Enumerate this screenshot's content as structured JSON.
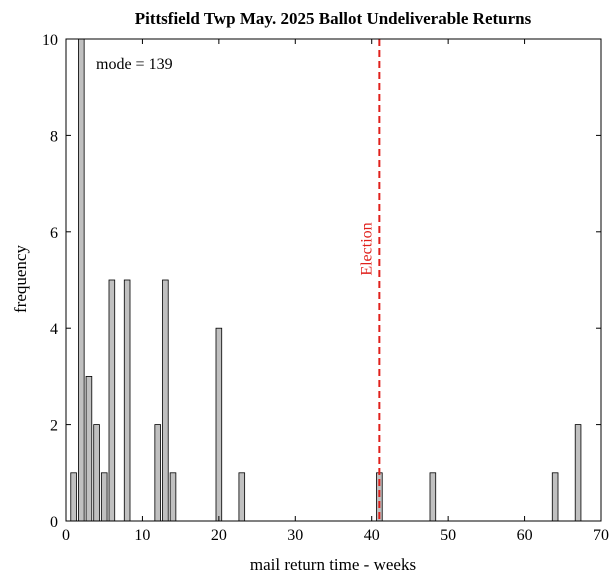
{
  "chart_data": {
    "type": "bar",
    "title": "Pittsfield Twp May. 2025 Ballot Undeliverable Returns",
    "xlabel": "mail return time - weeks",
    "ylabel": "frequency",
    "xlim": [
      0,
      70
    ],
    "ylim": [
      0,
      10
    ],
    "xticks": [
      "0",
      "10",
      "20",
      "30",
      "40",
      "50",
      "60",
      "70"
    ],
    "yticks": [
      "0",
      "2",
      "4",
      "6",
      "8",
      "10"
    ],
    "grid": false,
    "bar_color": "#c0c0c0",
    "x": [
      1,
      2,
      3,
      4,
      5,
      6,
      8,
      12,
      13,
      14,
      20,
      23,
      41,
      48,
      64,
      67
    ],
    "values": [
      1,
      10,
      3,
      2,
      1,
      5,
      5,
      2,
      5,
      1,
      4,
      1,
      1,
      1,
      1,
      2
    ],
    "annotations": [
      {
        "text": "mode = 139"
      }
    ],
    "reference_line": {
      "x": 41,
      "label": "Election",
      "color": "#e0201b",
      "style": "dashed"
    }
  }
}
